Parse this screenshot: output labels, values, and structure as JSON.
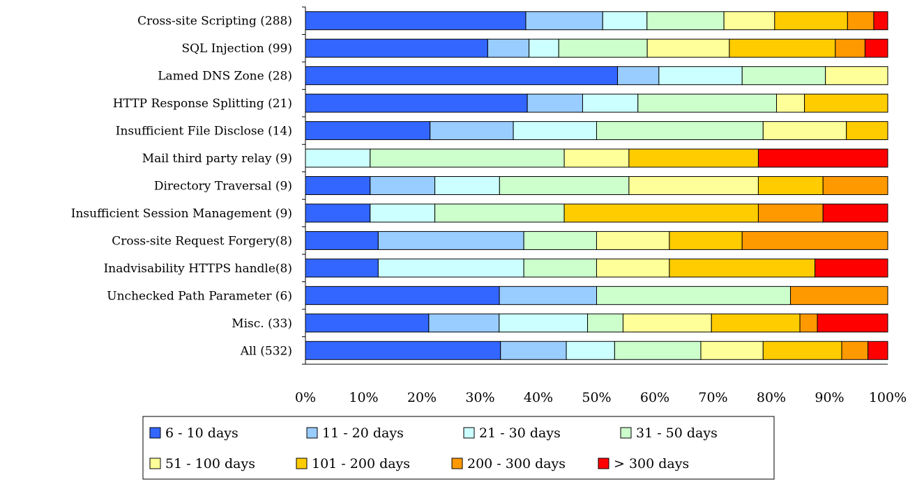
{
  "chart_data": {
    "type": "bar",
    "orientation": "horizontal",
    "stacked": "percent",
    "categories": [
      "Cross-site Scripting (288)",
      "SQL Injection (99)",
      "Lamed DNS Zone (28)",
      "HTTP Response Splitting (21)",
      "Insufficient File Disclose (14)",
      "Mail third party relay (9)",
      "Directory Traversal (9)",
      "Insufficient Session Management (9)",
      "Cross-site Request Forgery(8)",
      "Inadvisability HTTPS handle(8)",
      "Unchecked Path Parameter (6)",
      "Misc. (33)",
      "All (532)"
    ],
    "series": [
      {
        "name": "6 - 10 days",
        "color": "#3366ff",
        "values": [
          37.8,
          31.3,
          53.6,
          38.1,
          21.4,
          0,
          11.1,
          11.1,
          12.5,
          12.5,
          33.3,
          21.2,
          33.5
        ]
      },
      {
        "name": "11 - 20 days",
        "color": "#99ccff",
        "values": [
          13.2,
          7.1,
          7.1,
          9.5,
          14.3,
          0,
          11.1,
          0,
          25.0,
          0,
          16.7,
          12.1,
          11.3
        ]
      },
      {
        "name": "21 - 30 days",
        "color": "#ccffff",
        "values": [
          7.6,
          5.1,
          14.3,
          9.5,
          14.3,
          11.1,
          11.1,
          11.1,
          0,
          25.0,
          0,
          15.2,
          8.3
        ]
      },
      {
        "name": "31 - 50 days",
        "color": "#ccffcc",
        "values": [
          13.2,
          15.2,
          14.3,
          23.8,
          28.6,
          33.3,
          22.2,
          22.2,
          12.5,
          12.5,
          33.3,
          6.1,
          14.8
        ]
      },
      {
        "name": "51 - 100 days",
        "color": "#ffff99",
        "values": [
          8.7,
          14.1,
          10.7,
          4.8,
          14.3,
          11.1,
          22.2,
          0,
          12.5,
          12.5,
          0,
          15.2,
          10.7
        ]
      },
      {
        "name": "101 - 200 days",
        "color": "#ffcc00",
        "values": [
          12.5,
          18.2,
          0,
          14.3,
          7.1,
          22.2,
          11.1,
          33.3,
          12.5,
          25.0,
          0,
          15.2,
          13.5
        ]
      },
      {
        "name": "200 - 300 days",
        "color": "#ff9900",
        "values": [
          4.5,
          5.1,
          0,
          0,
          0,
          0,
          11.1,
          11.1,
          25.0,
          0,
          16.7,
          3.0,
          4.5
        ]
      },
      {
        "name": "> 300 days",
        "color": "#ff0000",
        "values": [
          2.4,
          3.9,
          0,
          0,
          0,
          22.2,
          0,
          11.1,
          0,
          12.5,
          0,
          12.1,
          3.4
        ]
      }
    ],
    "x_ticks": [
      "0%",
      "10%",
      "20%",
      "30%",
      "40%",
      "50%",
      "60%",
      "70%",
      "80%",
      "90%",
      "100%"
    ],
    "xlim": [
      0,
      100
    ],
    "title": "",
    "xlabel": "",
    "ylabel": "",
    "grid": false,
    "legend_position": "bottom"
  }
}
